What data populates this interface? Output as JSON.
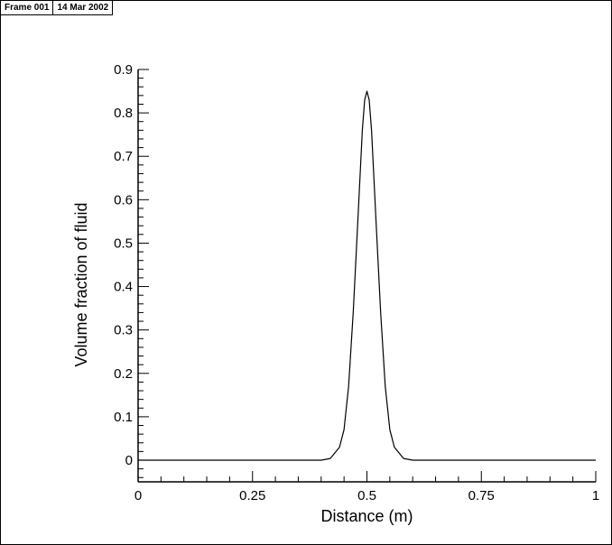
{
  "header": {
    "frame_label": "Frame 001",
    "date_label": "14 Mar 2002"
  },
  "chart_data": {
    "type": "line",
    "title": "",
    "xlabel": "Distance (m)",
    "ylabel": "Volume fraction of fluid",
    "xlim": [
      0,
      1
    ],
    "ylim": [
      -0.05,
      0.9
    ],
    "x_ticks": [
      0,
      0.25,
      0.5,
      0.75,
      1
    ],
    "x_tick_labels": [
      "0",
      "0.25",
      "0.5",
      "0.75",
      "1"
    ],
    "y_ticks": [
      0,
      0.1,
      0.2,
      0.3,
      0.4,
      0.5,
      0.6,
      0.7,
      0.8,
      0.9
    ],
    "y_tick_labels": [
      "0",
      "0.1",
      "0.2",
      "0.3",
      "0.4",
      "0.5",
      "0.6",
      "0.7",
      "0.8",
      "0.9"
    ],
    "grid": false,
    "series": [
      {
        "color": "#000000",
        "x": [
          0,
          0.4,
          0.42,
          0.44,
          0.45,
          0.46,
          0.47,
          0.48,
          0.49,
          0.495,
          0.5,
          0.505,
          0.51,
          0.52,
          0.53,
          0.54,
          0.55,
          0.56,
          0.58,
          0.6,
          1
        ],
        "y": [
          0,
          0,
          0.004,
          0.03,
          0.07,
          0.17,
          0.34,
          0.55,
          0.76,
          0.83,
          0.85,
          0.83,
          0.76,
          0.55,
          0.34,
          0.17,
          0.07,
          0.03,
          0.004,
          0,
          0
        ]
      }
    ]
  }
}
